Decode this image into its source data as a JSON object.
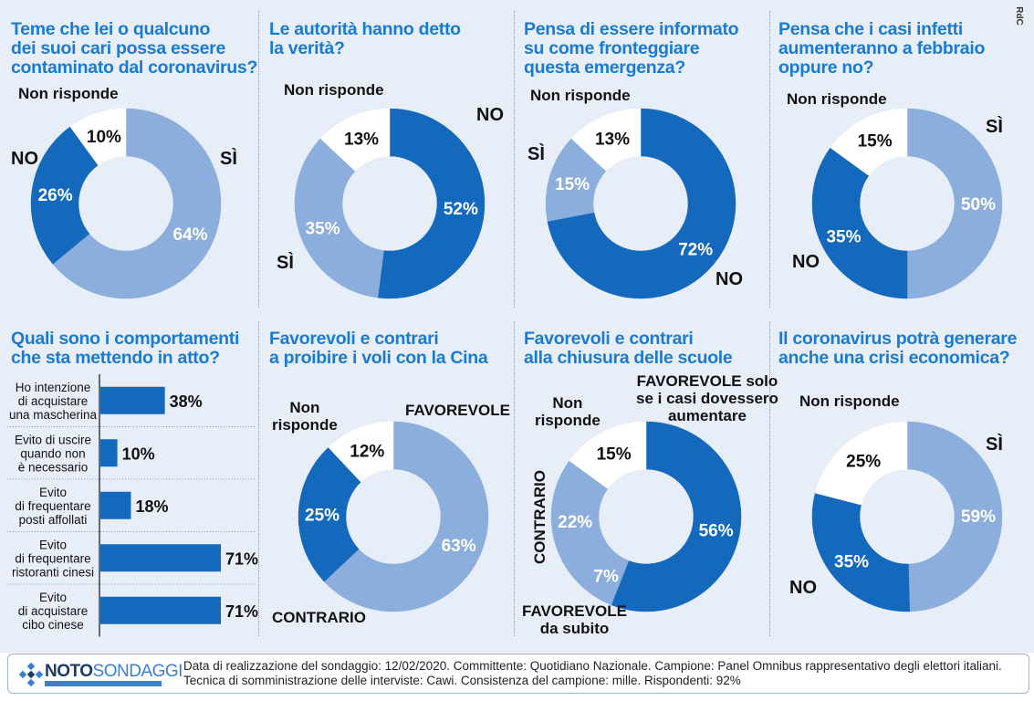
{
  "credit": "RdC",
  "colors": {
    "dark": "#1469bc",
    "light": "#8caedc",
    "white": "#ffffff",
    "title": "#1a7bd0"
  },
  "q1": {
    "title": [
      "Teme che lei o qualcuno",
      "dei suoi cari possa essere",
      "contaminato dal coronavirus?"
    ],
    "labels": {
      "nr": "Non risponde",
      "no": "NO",
      "si": "SÌ"
    }
  },
  "q2": {
    "title": [
      "Le autorità hanno detto",
      "la verità?"
    ],
    "labels": {
      "nr": "Non risponde",
      "no": "NO",
      "si": "SÌ"
    }
  },
  "q3": {
    "title": [
      "Pensa di essere informato",
      "su come fronteggiare",
      "questa emergenza?"
    ],
    "labels": {
      "nr": "Non risponde",
      "no": "NO",
      "si": "SÌ"
    }
  },
  "q4": {
    "title": [
      "Pensa che i casi infetti",
      "aumenteranno a febbraio",
      "oppure no?"
    ],
    "labels": {
      "nr": "Non risponde",
      "no": "NO",
      "si": "SÌ"
    }
  },
  "q5": {
    "title": [
      "Quali sono i comportamenti",
      "che sta mettendo in atto?"
    ]
  },
  "q6": {
    "title": [
      "Favorevoli e contrari",
      "a proibire i voli con la Cina"
    ],
    "labels": {
      "nr": [
        "Non",
        "risponde"
      ],
      "fav": "FAVOREVOLE",
      "con": "CONTRARIO"
    }
  },
  "q7": {
    "title": [
      "Favorevoli e contrari",
      "alla chiusura delle scuole"
    ],
    "labels": {
      "nr": [
        "Non",
        "risponde"
      ],
      "favsolo": [
        "FAVOREVOLE solo",
        "se i casi dovessero",
        "aumentare"
      ],
      "con": "CONTRARIO",
      "favsub": [
        "FAVOREVOLE",
        "da subito"
      ]
    }
  },
  "q8": {
    "title": [
      "Il coronavirus potrà generare",
      "anche una crisi economica?"
    ],
    "labels": {
      "nr": "Non risponde",
      "no": "NO",
      "si": "SÌ"
    }
  },
  "chart_data": [
    {
      "type": "pie",
      "title": "Teme che lei o qualcuno dei suoi cari possa essere contaminato dal coronavirus?",
      "categories": [
        "SÌ",
        "NO",
        "Non risponde"
      ],
      "values": [
        64,
        26,
        10
      ]
    },
    {
      "type": "pie",
      "title": "Le autorità hanno detto la verità?",
      "categories": [
        "NO",
        "SÌ",
        "Non risponde"
      ],
      "values": [
        52,
        35,
        13
      ]
    },
    {
      "type": "pie",
      "title": "Pensa di essere informato su come fronteggiare questa emergenza?",
      "categories": [
        "NO",
        "SÌ",
        "Non risponde"
      ],
      "values": [
        72,
        15,
        13
      ]
    },
    {
      "type": "pie",
      "title": "Pensa che i casi infetti aumenteranno a febbraio oppure no?",
      "categories": [
        "SÌ",
        "NO",
        "Non risponde"
      ],
      "values": [
        50,
        35,
        15
      ]
    },
    {
      "type": "bar",
      "title": "Quali sono i comportamenti che sta mettendo in atto?",
      "categories": [
        "Ho intenzione di acquistare una mascherina",
        "Evito di uscire quando non è necessario",
        "Evito di frequentare posti affollati",
        "Evito di frequentare ristoranti cinesi",
        "Evito di acquistare cibo cinese"
      ],
      "category_lines": [
        [
          "Ho intenzione",
          "di acquistare",
          "una mascherina"
        ],
        [
          "Evito di uscire",
          "quando non",
          "è necessario"
        ],
        [
          "Evito",
          "di frequentare",
          "posti affollati"
        ],
        [
          "Evito",
          "di frequentare",
          "ristoranti cinesi"
        ],
        [
          "Evito",
          "di acquistare",
          "cibo cinese"
        ]
      ],
      "values": [
        38,
        10,
        18,
        71,
        71
      ]
    },
    {
      "type": "pie",
      "title": "Favorevoli e contrari a proibire i voli con la Cina",
      "categories": [
        "FAVOREVOLE",
        "CONTRARIO",
        "Non risponde"
      ],
      "values": [
        63,
        25,
        12
      ]
    },
    {
      "type": "pie",
      "title": "Favorevoli e contrari alla chiusura delle scuole",
      "categories": [
        "FAVOREVOLE solo se i casi dovessero aumentare",
        "FAVOREVOLE da subito",
        "CONTRARIO",
        "Non risponde"
      ],
      "values": [
        56,
        7,
        22,
        15
      ]
    },
    {
      "type": "pie",
      "title": "Il coronavirus potrà generare anche una crisi economica?",
      "categories": [
        "SÌ",
        "NO",
        "Non risponde"
      ],
      "values": [
        59,
        35,
        25
      ]
    }
  ],
  "footer": {
    "logo_main": "NOTO",
    "logo_sub": "SONDAGGI",
    "line1": "Data di realizzazione del sondaggio: 12/02/2020. Committente: Quotidiano Nazionale. Campione: Panel Omnibus rappresentativo degli elettori italiani.",
    "line2": "Tecnica di somministrazione delle interviste: Cawi. Consistenza del campione: mille. Rispondenti: 92%"
  }
}
